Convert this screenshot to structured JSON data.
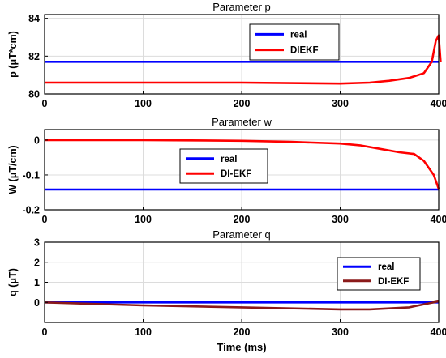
{
  "x_axis_label": "Time (ms)",
  "chart_data": [
    {
      "type": "line",
      "title": "Parameter p",
      "ylabel": "p (μT*cm)",
      "xlim": [
        0,
        400
      ],
      "ylim": [
        80,
        84.2
      ],
      "xticks": [
        0,
        100,
        200,
        300,
        400
      ],
      "yticks": [
        80,
        82,
        84
      ],
      "grid": true,
      "legend_position": "top-right",
      "series": [
        {
          "name": "real",
          "color": "#0000ff",
          "points": [
            [
              0,
              81.7
            ],
            [
              400,
              81.7
            ]
          ]
        },
        {
          "name": "DIEKF",
          "color": "#ff0000",
          "points": [
            [
              0,
              80.6
            ],
            [
              100,
              80.6
            ],
            [
              200,
              80.6
            ],
            [
              300,
              80.55
            ],
            [
              330,
              80.6
            ],
            [
              350,
              80.7
            ],
            [
              370,
              80.85
            ],
            [
              385,
              81.1
            ],
            [
              393,
              81.7
            ],
            [
              397,
              82.8
            ],
            [
              400,
              83.1
            ],
            [
              402,
              81.7
            ]
          ]
        }
      ]
    },
    {
      "type": "line",
      "title": "Parameter w",
      "ylabel": "W (μT/cm)",
      "xlim": [
        0,
        400
      ],
      "ylim": [
        -0.2,
        0.03
      ],
      "xticks": [
        0,
        100,
        200,
        300,
        400
      ],
      "yticks": [
        0,
        -0.1,
        -0.2
      ],
      "ytick_labels": [
        "0",
        "-0.1",
        "-0.2"
      ],
      "grid": true,
      "legend_position": "center-left",
      "series": [
        {
          "name": "real",
          "color": "#0000ff",
          "points": [
            [
              0,
              -0.142
            ],
            [
              400,
              -0.142
            ]
          ]
        },
        {
          "name": "DI-EKF",
          "color": "#ff0000",
          "points": [
            [
              0,
              0.0
            ],
            [
              100,
              0.0
            ],
            [
              200,
              -0.002
            ],
            [
              250,
              -0.005
            ],
            [
              300,
              -0.01
            ],
            [
              320,
              -0.015
            ],
            [
              340,
              -0.025
            ],
            [
              360,
              -0.035
            ],
            [
              375,
              -0.04
            ],
            [
              385,
              -0.06
            ],
            [
              395,
              -0.1
            ],
            [
              400,
              -0.14
            ]
          ]
        }
      ]
    },
    {
      "type": "line",
      "title": "Parameter q",
      "ylabel": "q (μT)",
      "xlabel": "Time (ms)",
      "xlim": [
        0,
        400
      ],
      "ylim": [
        -1,
        3
      ],
      "xticks": [
        0,
        100,
        200,
        300,
        400
      ],
      "yticks": [
        0,
        1,
        2,
        3
      ],
      "grid": true,
      "legend_position": "top-right",
      "series": [
        {
          "name": "real",
          "color": "#0000ff",
          "points": [
            [
              0,
              0
            ],
            [
              400,
              0
            ]
          ]
        },
        {
          "name": "DI-EKF",
          "color": "#8b1a1a",
          "points": [
            [
              0,
              0
            ],
            [
              100,
              -0.15
            ],
            [
              200,
              -0.25
            ],
            [
              300,
              -0.35
            ],
            [
              330,
              -0.35
            ],
            [
              370,
              -0.25
            ],
            [
              400,
              0.05
            ]
          ]
        }
      ]
    }
  ]
}
